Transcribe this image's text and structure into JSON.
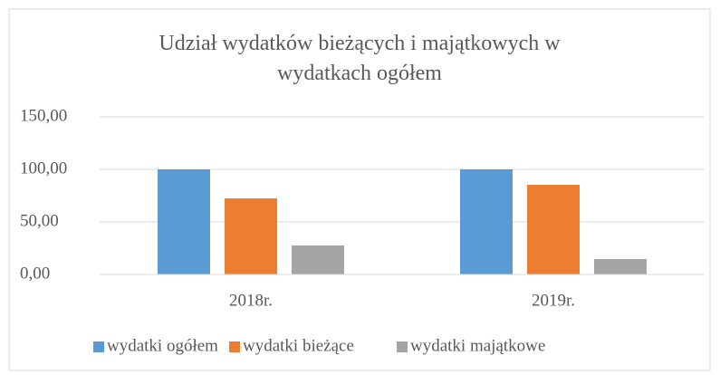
{
  "chart_data": {
    "type": "bar",
    "title": "Udział wydatków bieżących i majątkowych w wydatkach ogółem",
    "categories": [
      "2018r.",
      "2019r."
    ],
    "series": [
      {
        "name": "wydatki ogółem",
        "color": "#5b9bd5",
        "values": [
          100,
          100
        ]
      },
      {
        "name": "wydatki bieżące",
        "color": "#ed7d31",
        "values": [
          72.4,
          85.3
        ]
      },
      {
        "name": "wydatki majątkowe",
        "color": "#a5a5a5",
        "values": [
          27.6,
          14.7
        ]
      }
    ],
    "ylim": [
      0,
      150
    ],
    "yticks": [
      {
        "value": 0,
        "label": "0,00"
      },
      {
        "value": 50,
        "label": "50,00"
      },
      {
        "value": 100,
        "label": "100,00"
      },
      {
        "value": 150,
        "label": "150,00"
      }
    ],
    "grid": true,
    "legend": "bottom"
  }
}
